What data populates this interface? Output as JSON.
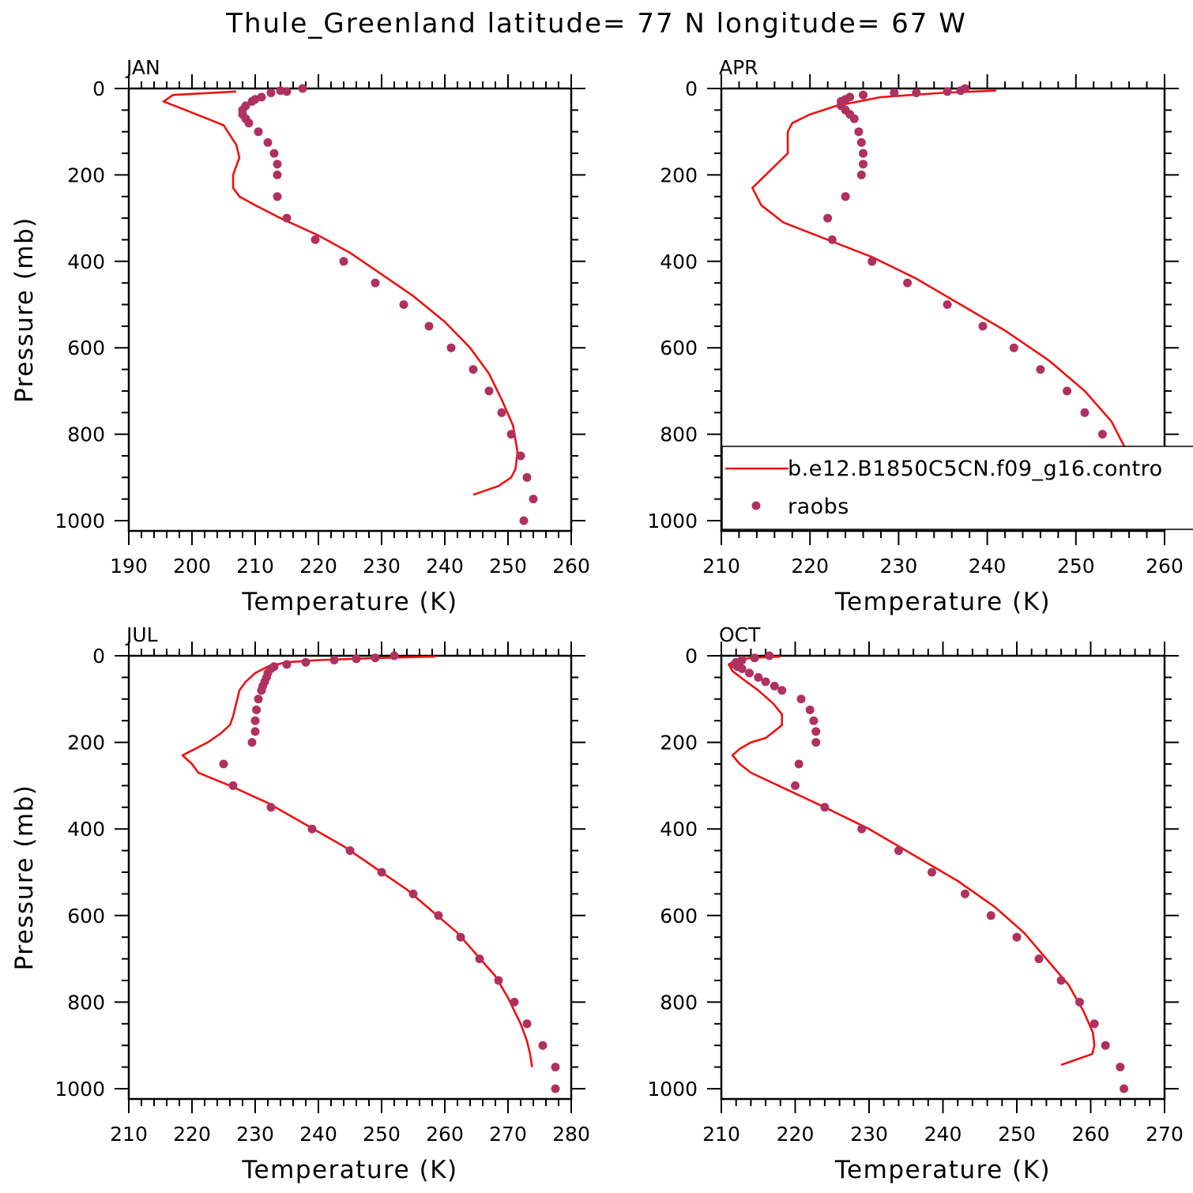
{
  "title": "Thule_Greenland  latitude= 77 N longitude= 67 W",
  "colors": {
    "model": "#ee1111",
    "obs": "#b03060"
  },
  "legend": {
    "model": "b.e12.B1850C5CN.f09_g16.contro",
    "obs": "raobs"
  },
  "chart_data": [
    {
      "type": "line",
      "panel": "JAN",
      "xlabel": "Temperature (K)",
      "ylabel": "Pressure (mb)",
      "xlim": [
        190,
        260
      ],
      "ylim": [
        1000,
        0
      ],
      "xticks": [
        190,
        200,
        210,
        220,
        230,
        240,
        250,
        260
      ],
      "yticks": [
        0,
        200,
        400,
        600,
        800,
        1000
      ],
      "series": [
        {
          "kind": "line",
          "points": [
            [
              207,
              7
            ],
            [
              197,
              15
            ],
            [
              195.5,
              30
            ],
            [
              199,
              50
            ],
            [
              205,
              85
            ],
            [
              207,
              130
            ],
            [
              207.5,
              160
            ],
            [
              206.5,
              200
            ],
            [
              206.5,
              230
            ],
            [
              207.5,
              250
            ],
            [
              210,
              270
            ],
            [
              214,
              300
            ],
            [
              220,
              340
            ],
            [
              225,
              380
            ],
            [
              230,
              430
            ],
            [
              235,
              480
            ],
            [
              240,
              540
            ],
            [
              244,
              600
            ],
            [
              247,
              660
            ],
            [
              249,
              720
            ],
            [
              250.8,
              780
            ],
            [
              251.5,
              840
            ],
            [
              251.2,
              880
            ],
            [
              250.5,
              900
            ],
            [
              248.5,
              920
            ],
            [
              244.5,
              940
            ]
          ]
        },
        {
          "kind": "scatter",
          "points": [
            [
              217.5,
              0
            ],
            [
              214,
              5
            ],
            [
              215,
              7
            ],
            [
              212.5,
              10
            ],
            [
              211,
              20
            ],
            [
              210,
              25
            ],
            [
              209.5,
              30
            ],
            [
              208.5,
              40
            ],
            [
              208,
              50
            ],
            [
              208,
              60
            ],
            [
              208.5,
              70
            ],
            [
              209,
              80
            ],
            [
              210.5,
              100
            ],
            [
              212,
              125
            ],
            [
              213,
              150
            ],
            [
              213.5,
              175
            ],
            [
              213.5,
              200
            ],
            [
              213.5,
              250
            ],
            [
              215,
              300
            ],
            [
              219.5,
              350
            ],
            [
              224,
              400
            ],
            [
              229,
              450
            ],
            [
              233.5,
              500
            ],
            [
              237.5,
              550
            ],
            [
              241,
              600
            ],
            [
              244.5,
              650
            ],
            [
              247,
              700
            ],
            [
              249,
              750
            ],
            [
              250.5,
              800
            ],
            [
              252,
              850
            ],
            [
              253,
              900
            ],
            [
              254,
              950
            ],
            [
              252.5,
              1000
            ]
          ]
        }
      ]
    },
    {
      "type": "line",
      "panel": "APR",
      "xlabel": "Temperature (K)",
      "ylabel": "",
      "xlim": [
        210,
        260
      ],
      "ylim": [
        1000,
        0
      ],
      "xticks": [
        210,
        220,
        230,
        240,
        250,
        260
      ],
      "yticks": [
        0,
        200,
        400,
        600,
        800,
        1000
      ],
      "legend": true,
      "series": [
        {
          "kind": "line",
          "points": [
            [
              241,
              5
            ],
            [
              235,
              10
            ],
            [
              228,
              20
            ],
            [
              223,
              40
            ],
            [
              220,
              60
            ],
            [
              218,
              80
            ],
            [
              217.5,
              100
            ],
            [
              217.5,
              150
            ],
            [
              216.5,
              170
            ],
            [
              215.5,
              190
            ],
            [
              214.5,
              210
            ],
            [
              213.5,
              230
            ],
            [
              214.5,
              270
            ],
            [
              217,
              310
            ],
            [
              222,
              350
            ],
            [
              227,
              390
            ],
            [
              232,
              440
            ],
            [
              237,
              500
            ],
            [
              242,
              560
            ],
            [
              247,
              630
            ],
            [
              251,
              700
            ],
            [
              254,
              770
            ],
            [
              255.5,
              830
            ],
            [
              256,
              880
            ],
            [
              256,
              910
            ],
            [
              255,
              930
            ],
            [
              252.5,
              950
            ]
          ]
        },
        {
          "kind": "scatter",
          "points": [
            [
              237.5,
              0
            ],
            [
              237,
              5
            ],
            [
              235.5,
              7
            ],
            [
              232,
              10
            ],
            [
              229.5,
              10
            ],
            [
              226,
              15
            ],
            [
              224.5,
              20
            ],
            [
              224,
              25
            ],
            [
              223.5,
              30
            ],
            [
              223.5,
              40
            ],
            [
              224,
              50
            ],
            [
              224.5,
              60
            ],
            [
              225,
              70
            ],
            [
              225.5,
              100
            ],
            [
              225.8,
              125
            ],
            [
              226,
              150
            ],
            [
              226,
              175
            ],
            [
              225.8,
              200
            ],
            [
              224,
              250
            ],
            [
              222,
              300
            ],
            [
              222.5,
              350
            ],
            [
              227,
              400
            ],
            [
              231,
              450
            ],
            [
              235.5,
              500
            ],
            [
              239.5,
              550
            ],
            [
              243,
              600
            ],
            [
              246,
              650
            ],
            [
              249,
              700
            ],
            [
              251,
              750
            ],
            [
              253,
              800
            ],
            [
              254,
              850
            ],
            [
              256,
              900
            ],
            [
              257,
              950
            ],
            [
              257,
              1000
            ]
          ]
        }
      ]
    },
    {
      "type": "line",
      "panel": "JUL",
      "xlabel": "Temperature (K)",
      "ylabel": "Pressure (mb)",
      "xlim": [
        210,
        280
      ],
      "ylim": [
        1000,
        0
      ],
      "xticks": [
        210,
        220,
        230,
        240,
        250,
        260,
        270,
        280
      ],
      "yticks": [
        0,
        200,
        400,
        600,
        800,
        1000
      ],
      "series": [
        {
          "kind": "line",
          "points": [
            [
              258.5,
              2
            ],
            [
              250,
              5
            ],
            [
              240,
              10
            ],
            [
              235,
              15
            ],
            [
              232,
              25
            ],
            [
              230,
              40
            ],
            [
              228.5,
              60
            ],
            [
              227.5,
              80
            ],
            [
              227,
              110
            ],
            [
              226.5,
              140
            ],
            [
              226,
              160
            ],
            [
              224.5,
              180
            ],
            [
              222.5,
              200
            ],
            [
              220.5,
              215
            ],
            [
              218.5,
              230
            ],
            [
              220,
              250
            ],
            [
              221,
              270
            ],
            [
              226,
              300
            ],
            [
              232,
              340
            ],
            [
              238,
              390
            ],
            [
              244,
              440
            ],
            [
              249,
              490
            ],
            [
              254,
              540
            ],
            [
              258,
              590
            ],
            [
              262,
              640
            ],
            [
              265,
              690
            ],
            [
              268,
              740
            ],
            [
              270,
              790
            ],
            [
              272,
              850
            ],
            [
              273,
              890
            ],
            [
              273.5,
              920
            ],
            [
              273.8,
              950
            ]
          ]
        },
        {
          "kind": "scatter",
          "points": [
            [
              252,
              0
            ],
            [
              249,
              5
            ],
            [
              246,
              7
            ],
            [
              242.5,
              10
            ],
            [
              238,
              15
            ],
            [
              235,
              20
            ],
            [
              233,
              25
            ],
            [
              232.5,
              30
            ],
            [
              232,
              40
            ],
            [
              231.8,
              50
            ],
            [
              231.5,
              60
            ],
            [
              231.2,
              70
            ],
            [
              231,
              80
            ],
            [
              230.5,
              100
            ],
            [
              230.2,
              125
            ],
            [
              230,
              150
            ],
            [
              230,
              175
            ],
            [
              229.5,
              200
            ],
            [
              225,
              250
            ],
            [
              226.5,
              300
            ],
            [
              232.5,
              350
            ],
            [
              239,
              400
            ],
            [
              245,
              450
            ],
            [
              250,
              500
            ],
            [
              255,
              550
            ],
            [
              259,
              600
            ],
            [
              262.5,
              650
            ],
            [
              265.5,
              700
            ],
            [
              268.5,
              750
            ],
            [
              271,
              800
            ],
            [
              273,
              850
            ],
            [
              275.5,
              900
            ],
            [
              277.5,
              950
            ],
            [
              277.5,
              1000
            ]
          ]
        }
      ]
    },
    {
      "type": "line",
      "panel": "OCT",
      "xlabel": "Temperature (K)",
      "ylabel": "",
      "xlim": [
        210,
        270
      ],
      "ylim": [
        1000,
        0
      ],
      "xticks": [
        210,
        220,
        230,
        240,
        250,
        260,
        270
      ],
      "yticks": [
        0,
        200,
        400,
        600,
        800,
        1000
      ],
      "series": [
        {
          "kind": "line",
          "points": [
            [
              218,
              2
            ],
            [
              214,
              5
            ],
            [
              212,
              10
            ],
            [
              211,
              20
            ],
            [
              211.5,
              35
            ],
            [
              213,
              55
            ],
            [
              215,
              80
            ],
            [
              217,
              110
            ],
            [
              218.2,
              135
            ],
            [
              218.2,
              160
            ],
            [
              217.5,
              170
            ],
            [
              216,
              190
            ],
            [
              214,
              200
            ],
            [
              212.5,
              215
            ],
            [
              211.5,
              230
            ],
            [
              212.5,
              250
            ],
            [
              214,
              270
            ],
            [
              219,
              310
            ],
            [
              224,
              350
            ],
            [
              230,
              400
            ],
            [
              236,
              460
            ],
            [
              242,
              520
            ],
            [
              247,
              580
            ],
            [
              251,
              640
            ],
            [
              254,
              700
            ],
            [
              257,
              760
            ],
            [
              259,
              820
            ],
            [
              260.3,
              870
            ],
            [
              260.5,
              900
            ],
            [
              260.2,
              920
            ],
            [
              258.5,
              930
            ],
            [
              256,
              945
            ]
          ]
        },
        {
          "kind": "scatter",
          "points": [
            [
              216.5,
              0
            ],
            [
              214.5,
              5
            ],
            [
              212.8,
              10
            ],
            [
              212,
              15
            ],
            [
              211.8,
              20
            ],
            [
              212.2,
              25
            ],
            [
              212.8,
              30
            ],
            [
              213.8,
              40
            ],
            [
              215,
              50
            ],
            [
              216,
              60
            ],
            [
              217.2,
              70
            ],
            [
              218.2,
              80
            ],
            [
              220.8,
              100
            ],
            [
              222,
              125
            ],
            [
              222.5,
              150
            ],
            [
              222.8,
              175
            ],
            [
              222.8,
              200
            ],
            [
              220.5,
              250
            ],
            [
              220,
              300
            ],
            [
              224,
              350
            ],
            [
              229,
              400
            ],
            [
              234,
              450
            ],
            [
              238.5,
              500
            ],
            [
              243,
              550
            ],
            [
              246.5,
              600
            ],
            [
              250,
              650
            ],
            [
              253,
              700
            ],
            [
              256,
              750
            ],
            [
              258.5,
              800
            ],
            [
              260.5,
              850
            ],
            [
              262,
              900
            ],
            [
              264,
              950
            ],
            [
              264.5,
              1000
            ]
          ]
        }
      ]
    }
  ]
}
